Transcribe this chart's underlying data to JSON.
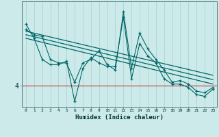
{
  "xlabel": "Humidex (Indice chaleur)",
  "bg_color": "#cceaea",
  "line_color": "#006666",
  "red_line_y": 4,
  "grid_color": "#aad4d4",
  "x_ticks": [
    0,
    1,
    2,
    3,
    4,
    5,
    6,
    7,
    8,
    9,
    10,
    11,
    12,
    13,
    14,
    15,
    16,
    17,
    18,
    19,
    20,
    21,
    22,
    23
  ],
  "xlim": [
    -0.5,
    23.5
  ],
  "ylim": [
    2.8,
    8.8
  ],
  "ytick_vals": [
    4
  ],
  "series1_x": [
    0,
    1,
    2,
    3,
    4,
    5,
    6,
    7,
    8,
    9,
    10,
    11,
    12,
    13,
    14,
    15,
    16,
    17,
    18,
    19,
    20,
    21,
    22,
    23
  ],
  "series1_y": [
    7.2,
    6.9,
    6.8,
    5.5,
    5.3,
    5.3,
    4.2,
    5.3,
    5.5,
    6.0,
    5.2,
    4.9,
    8.2,
    5.0,
    7.0,
    6.1,
    5.5,
    4.9,
    4.2,
    4.3,
    4.1,
    3.7,
    3.6,
    3.9
  ],
  "series2_x": [
    0,
    1,
    2,
    3,
    4,
    5,
    6,
    7,
    8,
    9,
    10,
    11,
    12,
    13,
    14,
    15,
    16,
    17,
    18,
    19,
    20,
    21,
    22,
    23
  ],
  "series2_y": [
    7.5,
    6.7,
    5.5,
    5.2,
    5.2,
    5.4,
    3.1,
    5.0,
    5.6,
    5.3,
    5.1,
    5.1,
    7.9,
    4.4,
    6.4,
    5.7,
    5.3,
    4.4,
    4.1,
    4.1,
    3.9,
    3.5,
    3.4,
    3.8
  ],
  "trend1_x": [
    0,
    23
  ],
  "trend1_y": [
    7.1,
    4.6
  ],
  "trend2_x": [
    0,
    23
  ],
  "trend2_y": [
    6.9,
    4.35
  ],
  "trend3_x": [
    0,
    23
  ],
  "trend3_y": [
    6.7,
    4.1
  ]
}
